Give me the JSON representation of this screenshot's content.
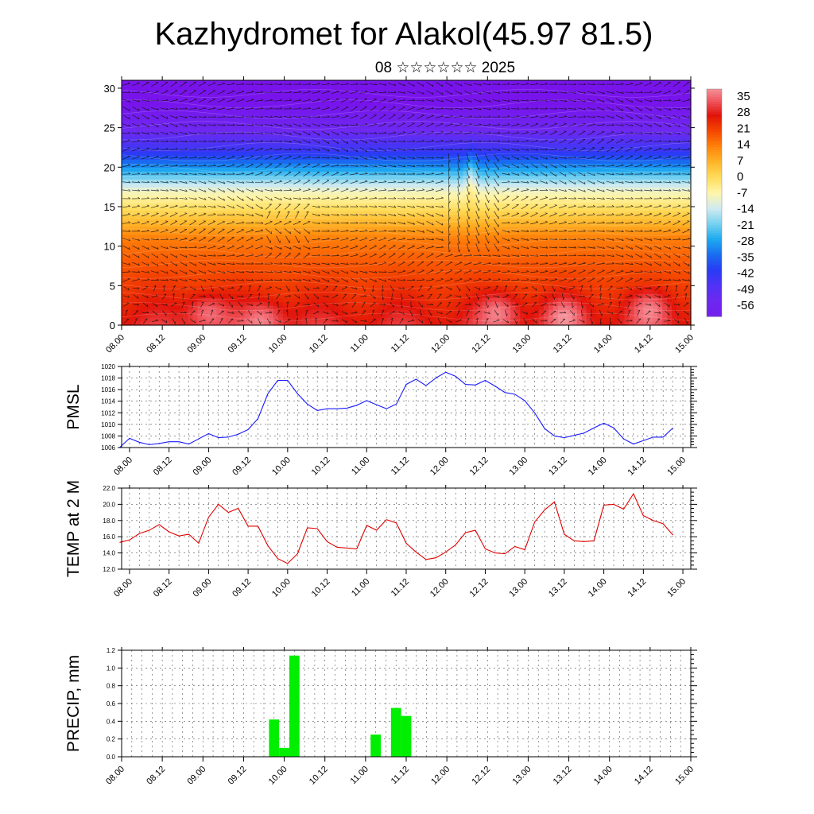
{
  "title": "Kazhydromet for Alakol(45.97 81.5)",
  "subtitle": "08 ☆☆☆☆☆☆ 2025",
  "time_labels": [
    "08.00",
    "08.12",
    "09.00",
    "09.12",
    "10.00",
    "10.12",
    "11.00",
    "11.12",
    "12.00",
    "12.12",
    "13.00",
    "13.12",
    "14.00",
    "14.12",
    "15.00"
  ],
  "colors": {
    "pmsl": "#1a1aff",
    "temp": "#e00000",
    "precip": "#00ee00",
    "grid": "#555555"
  },
  "chart_data": [
    {
      "type": "heatmap",
      "title": "",
      "ylabel": "",
      "ylim": [
        0,
        31
      ],
      "y_ticks": [
        0,
        5,
        10,
        15,
        20,
        25,
        30
      ],
      "x_range": [
        0,
        7
      ],
      "colorbar_labels": [
        "35",
        "28",
        "21",
        "14",
        "7",
        "0",
        "-7",
        "-14",
        "-21",
        "-28",
        "-35",
        "-42",
        "-49",
        "-56"
      ],
      "overlay": "wind-vectors"
    },
    {
      "type": "line",
      "ylabel": "PMSL",
      "ylim": [
        1006,
        1020
      ],
      "y_ticks": [
        "1006",
        "1008",
        "1010",
        "1012",
        "1014",
        "1016",
        "1018",
        "1020"
      ],
      "x_range": [
        -0.1,
        7.1
      ],
      "x": [
        -0.125,
        0,
        0.125,
        0.25,
        0.375,
        0.5,
        0.625,
        0.75,
        0.875,
        1,
        1.125,
        1.25,
        1.375,
        1.5,
        1.625,
        1.75,
        1.875,
        2,
        2.125,
        2.25,
        2.375,
        2.5,
        2.625,
        2.75,
        2.875,
        3,
        3.125,
        3.25,
        3.375,
        3.5,
        3.625,
        3.75,
        3.875,
        4,
        4.125,
        4.25,
        4.375,
        4.5,
        4.625,
        4.75,
        4.875,
        5,
        5.125,
        5.25,
        5.375,
        5.5,
        5.625,
        5.75,
        5.875,
        6,
        6.125,
        6.25,
        6.375,
        6.5,
        6.625,
        6.75,
        6.875
      ],
      "series": [
        {
          "values": [
            1006,
            1007.6,
            1006.9,
            1006.5,
            1006.7,
            1007,
            1007,
            1006.6,
            1007.5,
            1008.4,
            1007.7,
            1007.8,
            1008.3,
            1009.1,
            1011,
            1015.3,
            1017.6,
            1017.6,
            1015.3,
            1013.5,
            1012.4,
            1012.7,
            1012.7,
            1012.8,
            1013.3,
            1014.1,
            1013.4,
            1012.7,
            1013.5,
            1016.9,
            1017.8,
            1016.7,
            1018,
            1019,
            1018.3,
            1016.9,
            1016.8,
            1017.6,
            1016.6,
            1015.5,
            1015.2,
            1014.1,
            1012,
            1009.3,
            1008,
            1007.7,
            1008.1,
            1008.5,
            1009.4,
            1010.2,
            1009.4,
            1007.5,
            1006.6,
            1007.2,
            1007.8,
            1007.8,
            1009.4
          ]
        }
      ]
    },
    {
      "type": "line",
      "ylabel": "TEMP at 2 M",
      "ylim": [
        12,
        22
      ],
      "y_ticks": [
        "12.0",
        "14.0",
        "16.0",
        "18.0",
        "20.0",
        "22.0"
      ],
      "x_range": [
        -0.1,
        7.1
      ],
      "x": [
        -0.125,
        0,
        0.125,
        0.25,
        0.375,
        0.5,
        0.625,
        0.75,
        0.875,
        1,
        1.125,
        1.25,
        1.375,
        1.5,
        1.625,
        1.75,
        1.875,
        2,
        2.125,
        2.25,
        2.375,
        2.5,
        2.625,
        2.75,
        2.875,
        3,
        3.125,
        3.25,
        3.375,
        3.5,
        3.625,
        3.75,
        3.875,
        4,
        4.125,
        4.25,
        4.375,
        4.5,
        4.625,
        4.75,
        4.875,
        5,
        5.125,
        5.25,
        5.375,
        5.5,
        5.625,
        5.75,
        5.875,
        6,
        6.125,
        6.25,
        6.375,
        6.5,
        6.625,
        6.75,
        6.875
      ],
      "series": [
        {
          "values": [
            15.3,
            15.6,
            16.4,
            16.8,
            17.5,
            16.6,
            16.1,
            16.3,
            15.2,
            18.4,
            20,
            19,
            19.5,
            17.3,
            17.3,
            14.9,
            13.3,
            12.7,
            13.9,
            17.1,
            17,
            15.4,
            14.7,
            14.6,
            14.5,
            17.4,
            16.8,
            18.1,
            17.7,
            15.2,
            14.1,
            13.2,
            13.4,
            14.1,
            15,
            16.5,
            16.8,
            14.5,
            14,
            13.9,
            14.8,
            14.4,
            17.8,
            19.3,
            20.3,
            16.3,
            15.5,
            15.4,
            15.5,
            19.9,
            20,
            19.4,
            21.3,
            18.6,
            18,
            17.6,
            16.2
          ]
        }
      ]
    },
    {
      "type": "bar",
      "ylabel": "PRECIP, mm",
      "ylim": [
        0,
        1.2
      ],
      "y_ticks": [
        "0.0",
        "0.2",
        "0.4",
        "0.6",
        "0.8",
        "1.0",
        "1.2"
      ],
      "x_range": [
        0,
        7
      ],
      "bar_width": 0.125,
      "x": [
        1.875,
        2,
        2.125,
        3.125,
        3.375,
        3.5
      ],
      "series": [
        {
          "values": [
            0.42,
            0.1,
            1.14,
            0.25,
            0.55,
            0.46
          ]
        }
      ]
    }
  ]
}
